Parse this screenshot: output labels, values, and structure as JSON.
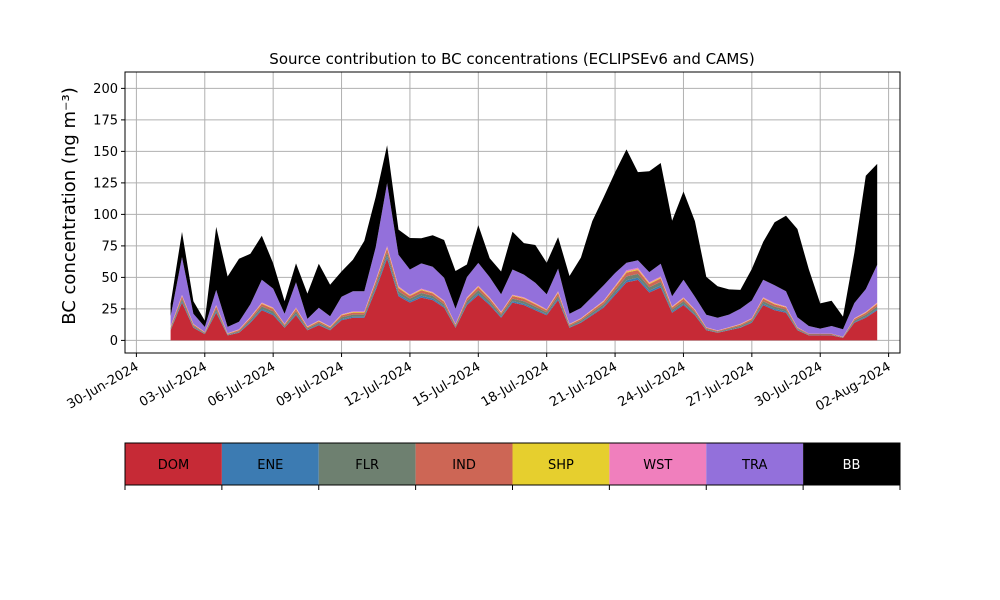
{
  "chart_data": {
    "type": "area",
    "stacked": true,
    "title": "Source contribution to BC concentrations (ECLIPSEv6 and CAMS)",
    "ylabel": "BC concentration (ng m⁻³)",
    "xlabel": "",
    "ylim": [
      -10,
      213
    ],
    "xlim": [
      "2024-06-29T12:00",
      "2024-08-02T12:00"
    ],
    "grid": true,
    "yticks": [
      0,
      25,
      50,
      75,
      100,
      125,
      150,
      175,
      200
    ],
    "xticks": [
      "2024-06-30",
      "2024-07-03",
      "2024-07-06",
      "2024-07-09",
      "2024-07-12",
      "2024-07-15",
      "2024-07-18",
      "2024-07-21",
      "2024-07-24",
      "2024-07-27",
      "2024-07-30",
      "2024-08-02"
    ],
    "xtick_labels": [
      "30-Jun-2024",
      "03-Jul-2024",
      "06-Jul-2024",
      "09-Jul-2024",
      "12-Jul-2024",
      "15-Jul-2024",
      "18-Jul-2024",
      "21-Jul-2024",
      "24-Jul-2024",
      "27-Jul-2024",
      "30-Jul-2024",
      "02-Aug-2024"
    ],
    "legend_position": "bottom",
    "x": [
      "2024-07-01T12:00",
      "2024-07-02T00:00",
      "2024-07-02T12:00",
      "2024-07-03T00:00",
      "2024-07-03T12:00",
      "2024-07-04T00:00",
      "2024-07-04T12:00",
      "2024-07-05T00:00",
      "2024-07-05T12:00",
      "2024-07-06T00:00",
      "2024-07-06T12:00",
      "2024-07-07T00:00",
      "2024-07-07T12:00",
      "2024-07-08T00:00",
      "2024-07-08T12:00",
      "2024-07-09T00:00",
      "2024-07-09T12:00",
      "2024-07-10T00:00",
      "2024-07-10T12:00",
      "2024-07-11T00:00",
      "2024-07-11T12:00",
      "2024-07-12T00:00",
      "2024-07-12T12:00",
      "2024-07-13T00:00",
      "2024-07-13T12:00",
      "2024-07-14T00:00",
      "2024-07-14T12:00",
      "2024-07-15T00:00",
      "2024-07-15T12:00",
      "2024-07-16T00:00",
      "2024-07-16T12:00",
      "2024-07-17T00:00",
      "2024-07-17T12:00",
      "2024-07-18T00:00",
      "2024-07-18T12:00",
      "2024-07-19T00:00",
      "2024-07-19T12:00",
      "2024-07-20T00:00",
      "2024-07-20T12:00",
      "2024-07-21T00:00",
      "2024-07-21T12:00",
      "2024-07-22T00:00",
      "2024-07-22T12:00",
      "2024-07-23T00:00",
      "2024-07-23T12:00",
      "2024-07-24T00:00",
      "2024-07-24T12:00",
      "2024-07-25T00:00",
      "2024-07-25T12:00",
      "2024-07-26T00:00",
      "2024-07-26T12:00",
      "2024-07-27T00:00",
      "2024-07-27T12:00",
      "2024-07-28T00:00",
      "2024-07-28T12:00",
      "2024-07-29T00:00",
      "2024-07-29T12:00",
      "2024-07-30T00:00",
      "2024-07-30T12:00",
      "2024-07-31T00:00",
      "2024-07-31T12:00",
      "2024-08-01T00:00",
      "2024-08-01T12:00"
    ],
    "series": [
      {
        "name": "DOM",
        "color": "#c62a36",
        "values": [
          8,
          30,
          10,
          5,
          22,
          4,
          6,
          14,
          24,
          20,
          10,
          20,
          8,
          12,
          8,
          16,
          18,
          18,
          40,
          65,
          35,
          30,
          34,
          32,
          26,
          10,
          28,
          36,
          28,
          18,
          30,
          28,
          24,
          20,
          32,
          10,
          14,
          20,
          26,
          36,
          46,
          48,
          38,
          42,
          22,
          28,
          20,
          8,
          6,
          8,
          10,
          14,
          28,
          24,
          22,
          8,
          4,
          4,
          4,
          2,
          14,
          18,
          24
        ]
      },
      {
        "name": "ENE",
        "color": "#3c7bb2",
        "values": [
          0.5,
          1,
          0.5,
          0.3,
          1,
          0.3,
          0.4,
          0.8,
          1,
          1,
          0.5,
          1,
          0.5,
          0.7,
          0.5,
          0.8,
          0.9,
          0.9,
          1.5,
          2,
          1.5,
          1.2,
          1.4,
          1.3,
          1,
          0.5,
          1.1,
          1.4,
          1.1,
          0.8,
          1.2,
          1.1,
          1,
          0.8,
          1.3,
          0.5,
          0.6,
          0.8,
          1,
          1.4,
          1.8,
          1.8,
          1.5,
          1.6,
          0.9,
          1.1,
          0.8,
          0.4,
          0.3,
          0.4,
          0.5,
          0.6,
          1.1,
          1,
          0.9,
          0.4,
          0.2,
          0.2,
          0.2,
          0.1,
          0.6,
          0.8,
          1
        ]
      },
      {
        "name": "FLR",
        "color": "#6e8070",
        "values": [
          1,
          2,
          1,
          0.5,
          2,
          0.5,
          0.8,
          1.5,
          2,
          2,
          1,
          2,
          1,
          1.2,
          1,
          1.5,
          1.6,
          1.6,
          2.5,
          3,
          2.5,
          2,
          2.2,
          2,
          1.8,
          1,
          2,
          2.4,
          2,
          1.5,
          2,
          2,
          1.8,
          1.5,
          2.2,
          1,
          1.2,
          1.5,
          1.8,
          2.4,
          3,
          3,
          2.6,
          2.8,
          1.6,
          2,
          1.5,
          0.8,
          0.6,
          0.8,
          1,
          1.2,
          2,
          1.8,
          1.6,
          0.8,
          0.5,
          0.5,
          0.5,
          0.3,
          1.2,
          1.5,
          2
        ]
      },
      {
        "name": "IND",
        "color": "#cd6655",
        "values": [
          1,
          2,
          1,
          0.5,
          2,
          0.5,
          1,
          1.5,
          2,
          2,
          1,
          2,
          1,
          1.2,
          1,
          1.5,
          1.6,
          1.6,
          2.5,
          3,
          2.5,
          2,
          2.2,
          2,
          1.8,
          1,
          2,
          2.4,
          2,
          1.5,
          2,
          2,
          1.8,
          1.5,
          2.2,
          1,
          1.2,
          1.5,
          1.8,
          2.4,
          3,
          3,
          2.6,
          2.8,
          1.6,
          2,
          1.5,
          0.8,
          0.6,
          0.8,
          1,
          1.2,
          2,
          1.8,
          1.6,
          0.8,
          0.5,
          0.5,
          0.5,
          0.3,
          1.2,
          1.5,
          2
        ]
      },
      {
        "name": "SHP",
        "color": "#e6cf2e",
        "values": [
          0.3,
          0.5,
          0.3,
          0.2,
          0.5,
          0.2,
          0.3,
          0.4,
          0.5,
          0.5,
          0.3,
          0.5,
          0.3,
          0.4,
          0.3,
          0.4,
          0.4,
          0.4,
          0.6,
          0.8,
          0.6,
          0.5,
          0.6,
          0.5,
          0.5,
          0.3,
          0.5,
          0.6,
          0.5,
          0.4,
          0.5,
          0.5,
          0.5,
          0.4,
          0.6,
          0.3,
          0.3,
          0.4,
          0.5,
          0.6,
          0.8,
          0.8,
          0.7,
          0.7,
          0.4,
          0.5,
          0.4,
          0.2,
          0.2,
          0.2,
          0.3,
          0.3,
          0.5,
          0.5,
          0.4,
          0.2,
          0.1,
          0.1,
          0.1,
          0.1,
          0.3,
          0.4,
          0.5
        ]
      },
      {
        "name": "WST",
        "color": "#f07fbd",
        "values": [
          0.3,
          0.6,
          0.3,
          0.2,
          0.6,
          0.2,
          0.3,
          0.5,
          0.6,
          0.6,
          0.3,
          0.6,
          0.3,
          0.4,
          0.3,
          0.5,
          0.5,
          0.5,
          0.8,
          1,
          0.8,
          0.6,
          0.7,
          0.6,
          0.6,
          0.3,
          0.6,
          0.7,
          0.6,
          0.5,
          0.6,
          0.6,
          0.6,
          0.5,
          0.7,
          0.3,
          0.4,
          0.5,
          0.6,
          0.7,
          1,
          1,
          0.8,
          0.9,
          0.5,
          0.6,
          0.5,
          0.2,
          0.2,
          0.3,
          0.3,
          0.4,
          0.6,
          0.6,
          0.5,
          0.2,
          0.1,
          0.1,
          0.1,
          0.1,
          0.4,
          0.5,
          0.6
        ]
      },
      {
        "name": "TRA",
        "color": "#9370db",
        "values": [
          8,
          30,
          8,
          4,
          12,
          5,
          6,
          10,
          18,
          15,
          8,
          20,
          6,
          10,
          8,
          14,
          16,
          16,
          26,
          50,
          25,
          20,
          20,
          20,
          18,
          12,
          16,
          18,
          16,
          14,
          20,
          18,
          16,
          12,
          18,
          8,
          8,
          10,
          12,
          10,
          6,
          6,
          8,
          10,
          8,
          14,
          10,
          10,
          10,
          10,
          12,
          14,
          14,
          14,
          12,
          8,
          6,
          4,
          6,
          6,
          12,
          18,
          30
        ]
      },
      {
        "name": "BB",
        "color": "#000000",
        "values": [
          10,
          20,
          10,
          5,
          50,
          40,
          50,
          40,
          35,
          20,
          10,
          15,
          20,
          35,
          25,
          20,
          25,
          40,
          40,
          30,
          20,
          25,
          20,
          25,
          30,
          30,
          10,
          30,
          15,
          18,
          30,
          25,
          30,
          25,
          25,
          30,
          40,
          60,
          70,
          80,
          90,
          70,
          80,
          80,
          60,
          70,
          60,
          30,
          25,
          20,
          15,
          25,
          30,
          50,
          60,
          70,
          45,
          20,
          20,
          10,
          40,
          90,
          80
        ]
      }
    ]
  }
}
